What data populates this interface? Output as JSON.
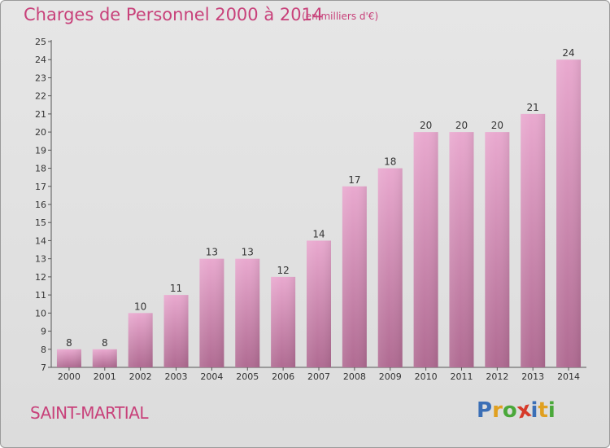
{
  "title": "Charges de Personnel 2000 à 2014",
  "subtitle": "(en milliers d'€)",
  "commune": "SAINT-MARTIAL",
  "logo": {
    "letters": [
      "P",
      "r",
      "o",
      "x",
      "i",
      "t",
      "i"
    ],
    "colors": [
      "#3b6fb6",
      "#e0a020",
      "#4aa83a",
      "#d63a2a",
      "#3b6fb6",
      "#e0a020",
      "#4aa83a"
    ]
  },
  "colors": {
    "bar_top": "#e9a9cf",
    "bar_bottom": "#b06b92",
    "title": "#c8417a"
  },
  "chart_data": {
    "type": "bar",
    "categories": [
      "2000",
      "2001",
      "2002",
      "2003",
      "2004",
      "2005",
      "2006",
      "2007",
      "2008",
      "2009",
      "2010",
      "2011",
      "2012",
      "2013",
      "2014"
    ],
    "values": [
      8,
      8,
      10,
      11,
      13,
      13,
      12,
      14,
      17,
      18,
      20,
      20,
      20,
      21,
      24
    ],
    "title": "Charges de Personnel 2000 à 2014",
    "ylim": [
      7,
      25
    ],
    "yticks": [
      7,
      8,
      9,
      10,
      11,
      12,
      13,
      14,
      15,
      16,
      17,
      18,
      19,
      20,
      21,
      22,
      23,
      24,
      25
    ],
    "grid": false,
    "data_labels": true
  }
}
